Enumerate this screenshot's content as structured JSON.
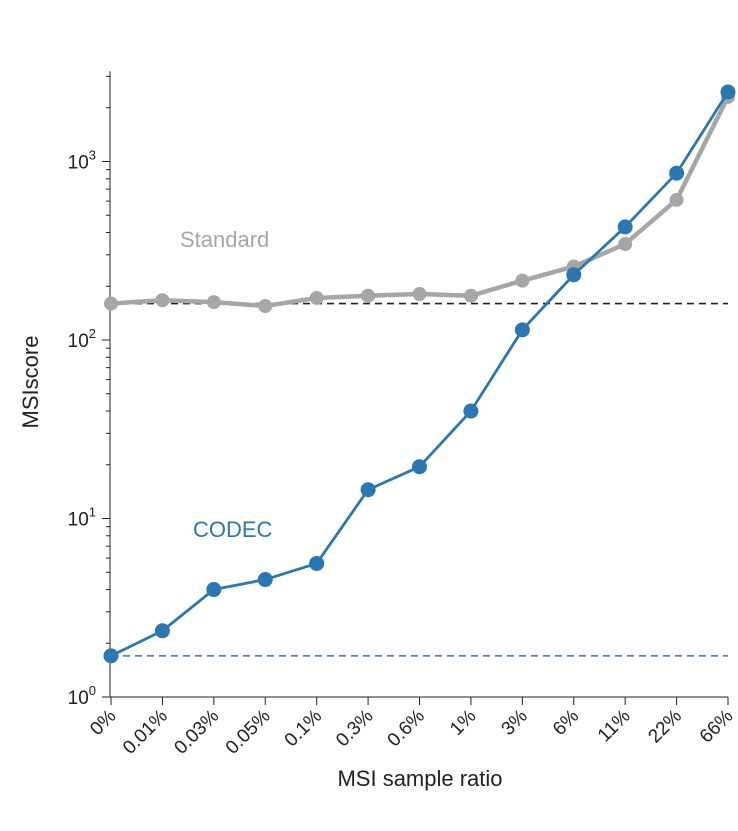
{
  "chart_data": {
    "type": "line",
    "title": "",
    "xlabel": "MSI sample ratio",
    "ylabel": "MSIscore",
    "yscale": "log",
    "ylim": [
      1,
      3200
    ],
    "yticks": [
      {
        "value": 1,
        "base": "10",
        "exp": "0"
      },
      {
        "value": 10,
        "base": "10",
        "exp": "1"
      },
      {
        "value": 100,
        "base": "10",
        "exp": "2"
      },
      {
        "value": 1000,
        "base": "10",
        "exp": "3"
      }
    ],
    "categories": [
      "0%",
      "0.01%",
      "0.03%",
      "0.05%",
      "0.1%",
      "0.3%",
      "0.6%",
      "1%",
      "3%",
      "6%",
      "11%",
      "22%",
      "66%"
    ],
    "grid": false,
    "legend": "inline labels",
    "series": [
      {
        "name": "Standard",
        "color": "#a6a6a6",
        "values": [
          160,
          167,
          163,
          155,
          172,
          177,
          181,
          177,
          215,
          258,
          345,
          610,
          2300
        ],
        "label_position": "upper-left"
      },
      {
        "name": "CODEC",
        "color": "#2a77b4",
        "values": [
          1.7,
          2.35,
          4.0,
          4.55,
          5.6,
          14.5,
          19.5,
          40,
          114,
          232,
          430,
          860,
          2450
        ],
        "label_position": "center-left"
      }
    ],
    "reference_lines": [
      {
        "value": 160,
        "color": "#222222",
        "style": "dashed"
      },
      {
        "value": 1.7,
        "color": "#2a77b4",
        "style": "dashed"
      }
    ]
  }
}
